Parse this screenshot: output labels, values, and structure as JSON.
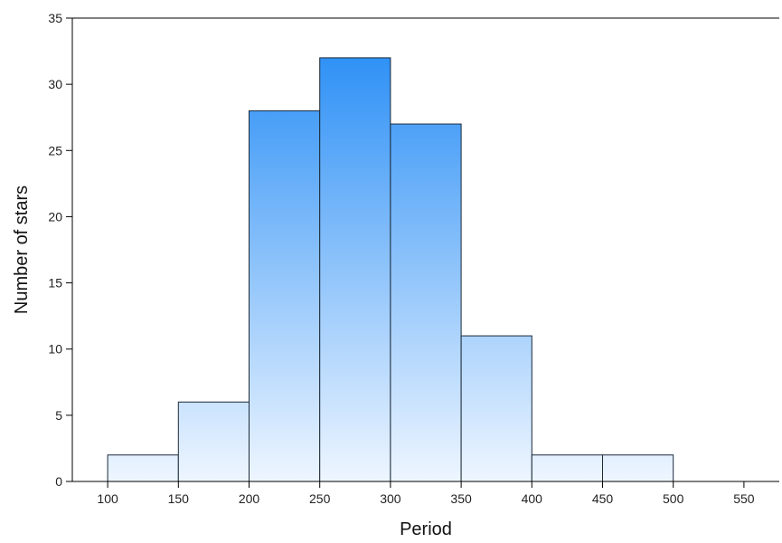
{
  "chart_data": {
    "type": "bar",
    "subtype": "histogram",
    "title": "",
    "xlabel": "Period",
    "ylabel": "Number of stars",
    "bins": [
      {
        "from": 100,
        "to": 150,
        "count": 2
      },
      {
        "from": 150,
        "to": 200,
        "count": 6
      },
      {
        "from": 200,
        "to": 250,
        "count": 28
      },
      {
        "from": 250,
        "to": 300,
        "count": 32
      },
      {
        "from": 300,
        "to": 350,
        "count": 27
      },
      {
        "from": 350,
        "to": 400,
        "count": 11
      },
      {
        "from": 400,
        "to": 450,
        "count": 2
      },
      {
        "from": 450,
        "to": 500,
        "count": 2
      }
    ],
    "xlim": [
      75,
      575
    ],
    "ylim": [
      0,
      35
    ],
    "xticks": [
      100,
      150,
      200,
      250,
      300,
      350,
      400,
      450,
      500,
      550
    ],
    "yticks": [
      0,
      5,
      10,
      15,
      20,
      25,
      30,
      35
    ],
    "grid": false,
    "colors": {
      "bar_top": "#1e88f5",
      "bar_bottom": "#eef6ff",
      "bar_edge": "#1b2a3a",
      "axis": "#000000"
    }
  }
}
